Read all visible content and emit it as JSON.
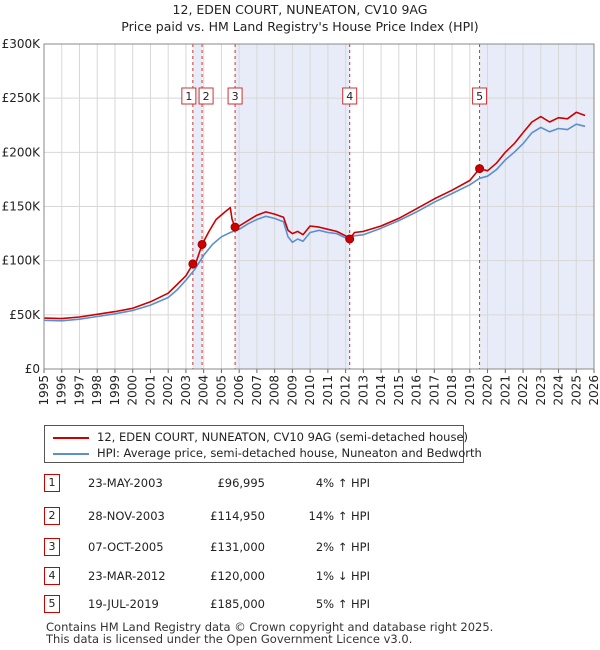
{
  "chart_data": {
    "type": "line",
    "title": "12, EDEN COURT, NUNEATON, CV10 9AG",
    "subtitle": "Price paid vs. HM Land Registry's House Price Index (HPI)",
    "ylim": [
      0,
      300000
    ],
    "xlim": [
      1995,
      2026
    ],
    "y_ticks": [
      0,
      50000,
      100000,
      150000,
      200000,
      250000,
      300000
    ],
    "y_tick_labels": [
      "£0",
      "£50K",
      "£100K",
      "£150K",
      "£200K",
      "£250K",
      "£300K"
    ],
    "x_ticks": [
      "1995",
      "1996",
      "1997",
      "1998",
      "1999",
      "2000",
      "2001",
      "2002",
      "2003",
      "2004",
      "2005",
      "2006",
      "2007",
      "2008",
      "2009",
      "2010",
      "2011",
      "2012",
      "2013",
      "2014",
      "2015",
      "2016",
      "2017",
      "2018",
      "2019",
      "2020",
      "2021",
      "2022",
      "2023",
      "2024",
      "2025",
      "2026"
    ],
    "grid": true,
    "shaded_periods": [
      [
        2003.39,
        2003.91
      ],
      [
        2005.77,
        2012.23
      ],
      [
        2019.55,
        2026
      ]
    ],
    "series": [
      {
        "name": "12, EDEN COURT, NUNEATON, CV10 9AG (semi-detached house)",
        "color": "#cc0000",
        "x": [
          1995,
          1996,
          1997,
          1998,
          1999,
          2000,
          2001,
          2002,
          2002.5,
          2003,
          2003.39,
          2003.6,
          2003.91,
          2004.3,
          2004.7,
          2005.2,
          2005.5,
          2005.6,
          2005.77,
          2006,
          2006.5,
          2007,
          2007.5,
          2008,
          2008.5,
          2008.75,
          2009,
          2009.3,
          2009.6,
          2010,
          2010.5,
          2011,
          2011.5,
          2012,
          2012.23,
          2012.5,
          2013,
          2014,
          2015,
          2016,
          2017,
          2018,
          2019,
          2019.55,
          2020,
          2020.5,
          2021,
          2021.5,
          2022,
          2022.5,
          2023,
          2023.5,
          2024,
          2024.5,
          2025,
          2025.5
        ],
        "values": [
          47000,
          46500,
          48000,
          50500,
          53000,
          56000,
          62000,
          70000,
          78000,
          86000,
          96995,
          100000,
          114950,
          127000,
          138000,
          145000,
          149000,
          138000,
          131000,
          132000,
          137000,
          142000,
          145000,
          143000,
          140000,
          128000,
          125000,
          127000,
          124000,
          132000,
          131000,
          129000,
          127000,
          123000,
          120000,
          126000,
          127000,
          132000,
          139000,
          148000,
          157000,
          165000,
          174000,
          185000,
          183000,
          190000,
          200000,
          208000,
          218000,
          228000,
          233000,
          228000,
          232000,
          231000,
          237000,
          234000
        ]
      },
      {
        "name": "HPI: Average price, semi-detached house, Nuneaton and Bedworth",
        "color": "#5b8fd0",
        "x": [
          1995,
          1996,
          1997,
          1998,
          1999,
          2000,
          2001,
          2002,
          2002.5,
          2003,
          2003.5,
          2004,
          2004.5,
          2005,
          2005.5,
          2006,
          2006.5,
          2007,
          2007.5,
          2008,
          2008.5,
          2008.75,
          2009,
          2009.3,
          2009.6,
          2010,
          2010.5,
          2011,
          2011.5,
          2012,
          2012.5,
          2013,
          2014,
          2015,
          2016,
          2017,
          2018,
          2019,
          2019.55,
          2020,
          2020.5,
          2021,
          2021.5,
          2022,
          2022.5,
          2023,
          2023.5,
          2024,
          2024.5,
          2025,
          2025.5
        ],
        "values": [
          45000,
          44500,
          46000,
          48500,
          51000,
          54000,
          59000,
          66000,
          73000,
          82000,
          92000,
          105000,
          115000,
          122000,
          126000,
          129000,
          134000,
          138000,
          141000,
          139000,
          136000,
          122000,
          117000,
          120000,
          118000,
          126000,
          128000,
          126000,
          125000,
          121000,
          123000,
          124000,
          130000,
          137000,
          145000,
          154000,
          162000,
          170000,
          176000,
          178000,
          184000,
          193000,
          200000,
          208000,
          218000,
          223000,
          219000,
          222000,
          221000,
          226000,
          224000
        ]
      }
    ],
    "sale_markers": [
      {
        "label": "1",
        "x": 2003.39,
        "value": 96995
      },
      {
        "label": "2",
        "x": 2003.91,
        "value": 114950
      },
      {
        "label": "3",
        "x": 2005.77,
        "value": 131000
      },
      {
        "label": "4",
        "x": 2012.23,
        "value": 120000
      },
      {
        "label": "5",
        "x": 2019.55,
        "value": 185000
      }
    ]
  },
  "legend": {
    "property_label": "12, EDEN COURT, NUNEATON, CV10 9AG (semi-detached house)",
    "hpi_label": "HPI: Average price, semi-detached house, Nuneaton and Bedworth"
  },
  "transactions": [
    {
      "num": "1",
      "date": "23-MAY-2003",
      "price": "£96,995",
      "hpi": "4% ↑ HPI"
    },
    {
      "num": "2",
      "date": "28-NOV-2003",
      "price": "£114,950",
      "hpi": "14% ↑ HPI"
    },
    {
      "num": "3",
      "date": "07-OCT-2005",
      "price": "£131,000",
      "hpi": "2% ↑ HPI"
    },
    {
      "num": "4",
      "date": "23-MAR-2012",
      "price": "£120,000",
      "hpi": "1% ↓ HPI"
    },
    {
      "num": "5",
      "date": "19-JUL-2019",
      "price": "£185,000",
      "hpi": "5% ↑ HPI"
    }
  ],
  "footer": {
    "line1": "Contains HM Land Registry data © Crown copyright and database right 2025.",
    "line2": "This data is licensed under the Open Government Licence v3.0."
  },
  "colors": {
    "property": "#cc0000",
    "hpi": "#5b8fd0",
    "shade": "#e8ecf8",
    "grid": "#d8d8d8",
    "marker_line": "#cc3333"
  }
}
